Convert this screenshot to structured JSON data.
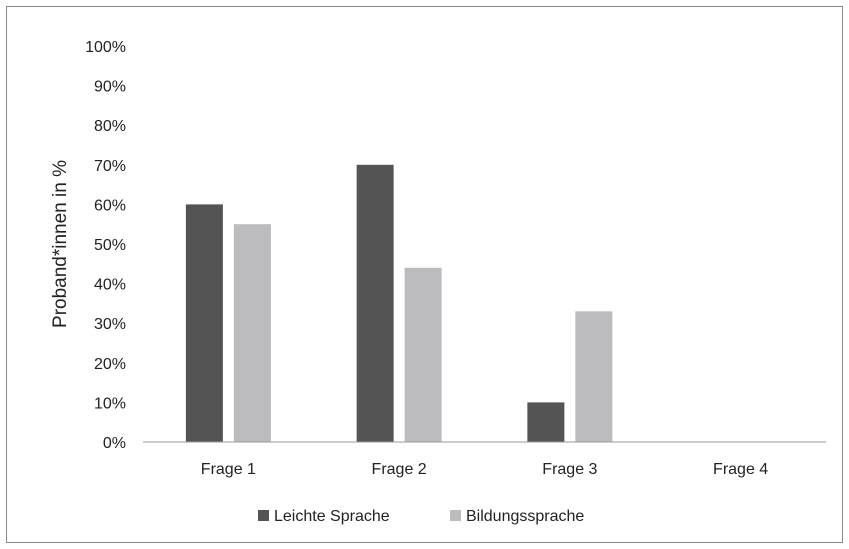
{
  "chart_data": {
    "type": "bar",
    "categories": [
      "Frage 1",
      "Frage 2",
      "Frage 3",
      "Frage 4"
    ],
    "series": [
      {
        "name": "Leichte Sprache",
        "values": [
          60,
          70,
          10,
          0
        ],
        "color": "#545454"
      },
      {
        "name": "Bildungssprache",
        "values": [
          55,
          44,
          33,
          0
        ],
        "color": "#bcbcbe"
      }
    ],
    "ylabel": "Proband*innen in %",
    "ylim": [
      0,
      100
    ],
    "y_ticks": [
      "0%",
      "10%",
      "20%",
      "30%",
      "40%",
      "50%",
      "60%",
      "70%",
      "80%",
      "90%",
      "100%"
    ],
    "grid": false,
    "legend_position": "bottom"
  }
}
